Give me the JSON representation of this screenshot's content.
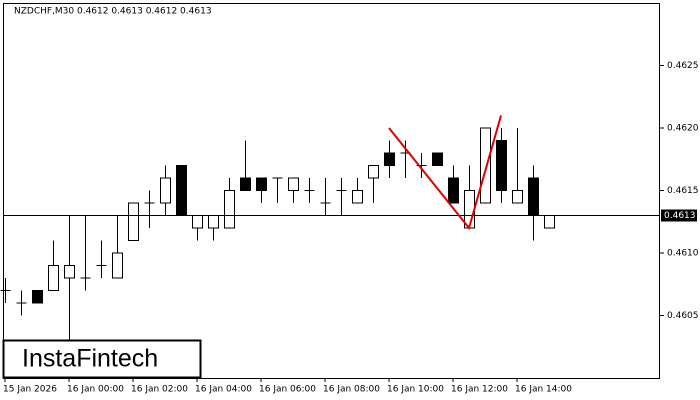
{
  "chart_data": {
    "type": "candlestick",
    "title": "NZDCHF,M30  0.4612 0.4613 0.4612 0.4613",
    "logo": "InstaFintech",
    "categories": [
      "15 Jan 2026",
      null,
      null,
      null,
      "16 Jan 00:00",
      null,
      null,
      null,
      "16 Jan 02:00",
      null,
      null,
      null,
      "16 Jan 04:00",
      null,
      null,
      null,
      "16 Jan 06:00",
      null,
      null,
      null,
      "16 Jan 08:00",
      null,
      null,
      null,
      "16 Jan 10:00",
      null,
      null,
      null,
      "16 Jan 12:00",
      null,
      null,
      null,
      "16 Jan 14:00",
      null,
      null
    ],
    "open": [
      0.4607,
      0.4606,
      0.4607,
      0.4607,
      0.4608,
      0.4608,
      0.4609,
      0.4608,
      0.4611,
      0.4614,
      0.4614,
      0.4617,
      0.4612,
      0.4612,
      0.4612,
      0.4616,
      0.4616,
      0.4616,
      0.4615,
      0.4615,
      0.4614,
      0.4615,
      0.4614,
      0.4616,
      0.4618,
      0.4618,
      0.4617,
      0.4618,
      0.4616,
      0.4612,
      0.4614,
      0.4619,
      0.4614,
      0.4616,
      0.4612
    ],
    "high": [
      0.4608,
      0.4607,
      0.4607,
      0.4611,
      0.4613,
      0.4613,
      0.4611,
      0.4613,
      0.4614,
      0.4615,
      0.4617,
      0.4617,
      0.4613,
      0.4613,
      0.4616,
      0.4619,
      0.4616,
      0.4616,
      0.4616,
      0.4616,
      0.4616,
      0.4616,
      0.4616,
      0.4617,
      0.4619,
      0.4619,
      0.4618,
      0.4618,
      0.4617,
      0.4617,
      0.462,
      0.462,
      0.462,
      0.4617,
      0.4613
    ],
    "low": [
      0.4606,
      0.4605,
      0.4606,
      0.4607,
      0.4603,
      0.4607,
      0.4608,
      0.4608,
      0.4611,
      0.4612,
      0.4613,
      0.4613,
      0.4611,
      0.4611,
      0.4612,
      0.4615,
      0.4614,
      0.4614,
      0.4614,
      0.4614,
      0.4613,
      0.4613,
      0.4614,
      0.4614,
      0.4616,
      0.4616,
      0.4616,
      0.4617,
      0.4614,
      0.4612,
      0.4614,
      0.4614,
      0.4614,
      0.4611,
      0.4612
    ],
    "close": [
      0.4607,
      0.4606,
      0.4606,
      0.4609,
      0.4609,
      0.4608,
      0.4609,
      0.461,
      0.4614,
      0.4614,
      0.4616,
      0.4613,
      0.4613,
      0.4613,
      0.4615,
      0.4615,
      0.4615,
      0.4616,
      0.4616,
      0.4615,
      0.4614,
      0.4615,
      0.4615,
      0.4617,
      0.4617,
      0.4618,
      0.4617,
      0.4617,
      0.4614,
      0.4615,
      0.462,
      0.4615,
      0.4615,
      0.4613,
      0.4613
    ],
    "current_price": 0.4613,
    "pattern": {
      "color": "#e00000",
      "x": [
        24,
        29,
        31
      ],
      "values": [
        0.462,
        0.4612,
        0.4621
      ]
    },
    "ylim": [
      0.46,
      0.463
    ],
    "yticks": [
      0.4605,
      {
        "value": 0.461,
        "label": "0.4610"
      },
      0.4615,
      {
        "value": 0.462,
        "label": "0.4620"
      },
      0.4625
    ]
  }
}
